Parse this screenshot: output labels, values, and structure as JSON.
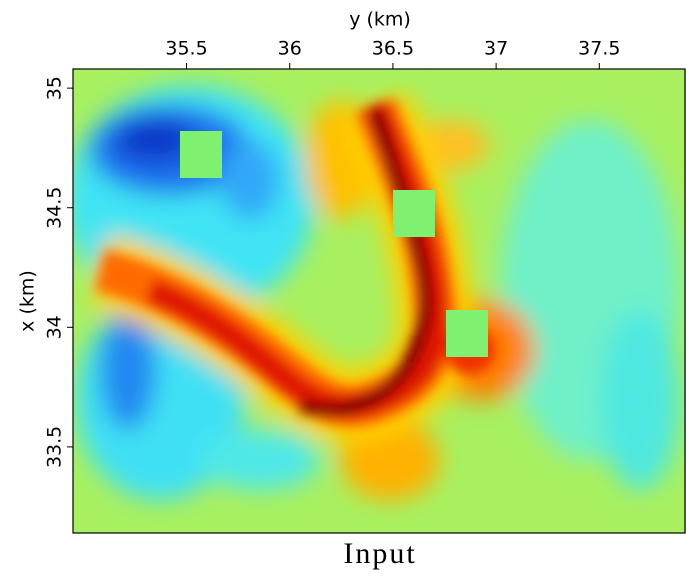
{
  "chart_data": {
    "type": "heatmap",
    "title": "Input",
    "xlabel": "y (km)",
    "ylabel": "x (km)",
    "xlim": [
      34.95,
      37.92
    ],
    "ylim": [
      33.14,
      35.08
    ],
    "xticks": [
      35.5,
      36,
      36.5,
      37,
      37.5
    ],
    "yticks": [
      33.5,
      34,
      34.5,
      35
    ]
  }
}
